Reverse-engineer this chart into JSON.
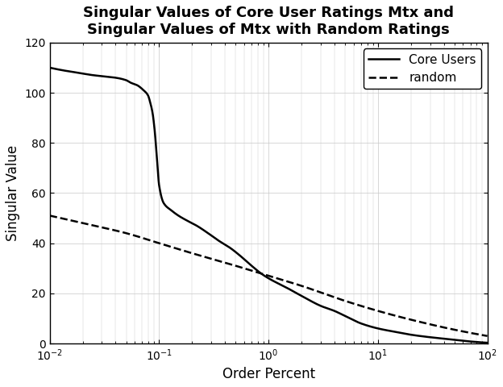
{
  "title": "Singular Values of Core User Ratings Mtx and\nSingular Values of Mtx with Random Ratings",
  "xlabel": "Order Percent",
  "ylabel": "Singular Value",
  "xlim_log": [
    -2,
    2
  ],
  "ylim": [
    0,
    120
  ],
  "yticks": [
    0,
    20,
    40,
    60,
    80,
    100,
    120
  ],
  "legend_labels": [
    "Core Users",
    "random"
  ],
  "line_color": "#000000",
  "background_color": "#ffffff",
  "grid_color": "#c8c8c8",
  "title_fontsize": 13,
  "label_fontsize": 12,
  "legend_fontsize": 11,
  "core_users_x": [
    0.01,
    0.013,
    0.018,
    0.025,
    0.032,
    0.04,
    0.05,
    0.055,
    0.063,
    0.072,
    0.079,
    0.083,
    0.087,
    0.091,
    0.095,
    0.1,
    0.11,
    0.13,
    0.15,
    0.18,
    0.22,
    0.28,
    0.35,
    0.45,
    0.55,
    0.7,
    0.85,
    1.0,
    1.5,
    2.0,
    3.0,
    4.0,
    5.0,
    7.0,
    10.0,
    15.0,
    20.0,
    30.0,
    50.0,
    70.0,
    100.0
  ],
  "core_users_y": [
    110,
    109,
    108,
    107,
    106.5,
    106,
    105,
    104,
    103,
    101,
    99,
    96,
    92,
    85,
    75,
    63,
    56,
    53,
    51,
    49,
    47,
    44,
    41,
    38,
    35,
    31,
    28,
    26,
    22,
    19,
    15,
    13,
    11,
    8,
    6,
    4.5,
    3.5,
    2.5,
    1.5,
    0.8,
    0.3
  ],
  "random_x": [
    0.01,
    0.02,
    0.05,
    0.1,
    0.2,
    0.5,
    1.0,
    2.0,
    5.0,
    10.0,
    20.0,
    50.0,
    100.0
  ],
  "random_y": [
    51,
    48,
    44,
    40,
    36,
    31,
    27,
    23,
    17,
    13,
    9.5,
    5.5,
    3.0
  ]
}
